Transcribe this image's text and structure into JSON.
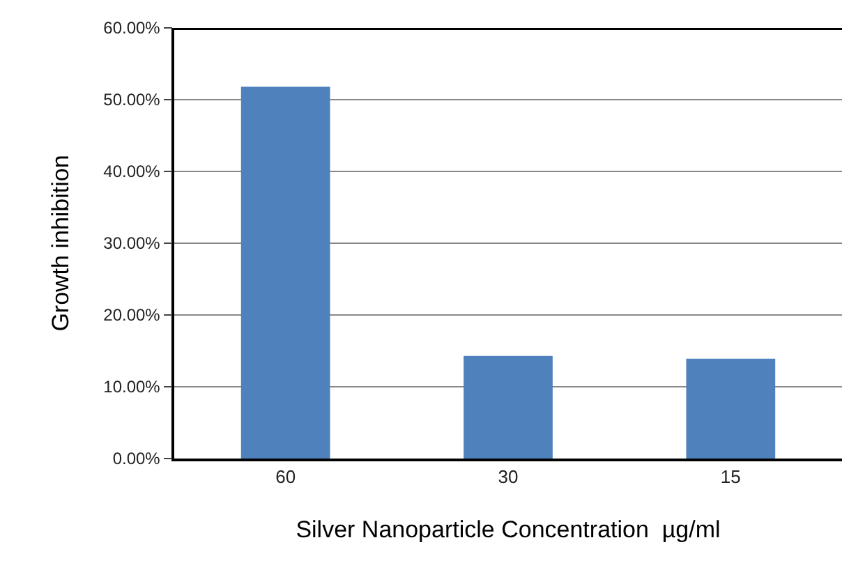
{
  "chart_data": {
    "type": "bar",
    "xlabel": "Silver Nanoparticle Concentration  µg/ml",
    "ylabel": "Growth inhibition",
    "categories": [
      "60",
      "30",
      "15"
    ],
    "values": [
      51.8,
      14.3,
      13.9
    ],
    "color": "#4f81bd",
    "ylim": [
      0,
      60
    ],
    "yticks": [
      {
        "value": 0,
        "label": "0.00%"
      },
      {
        "value": 10,
        "label": "10.00%"
      },
      {
        "value": 20,
        "label": "20.00%"
      },
      {
        "value": 30,
        "label": "30.00%"
      },
      {
        "value": 40,
        "label": "40.00%"
      },
      {
        "value": 50,
        "label": "50.00%"
      },
      {
        "value": 60,
        "label": "60.00%"
      }
    ],
    "grid": "y"
  }
}
